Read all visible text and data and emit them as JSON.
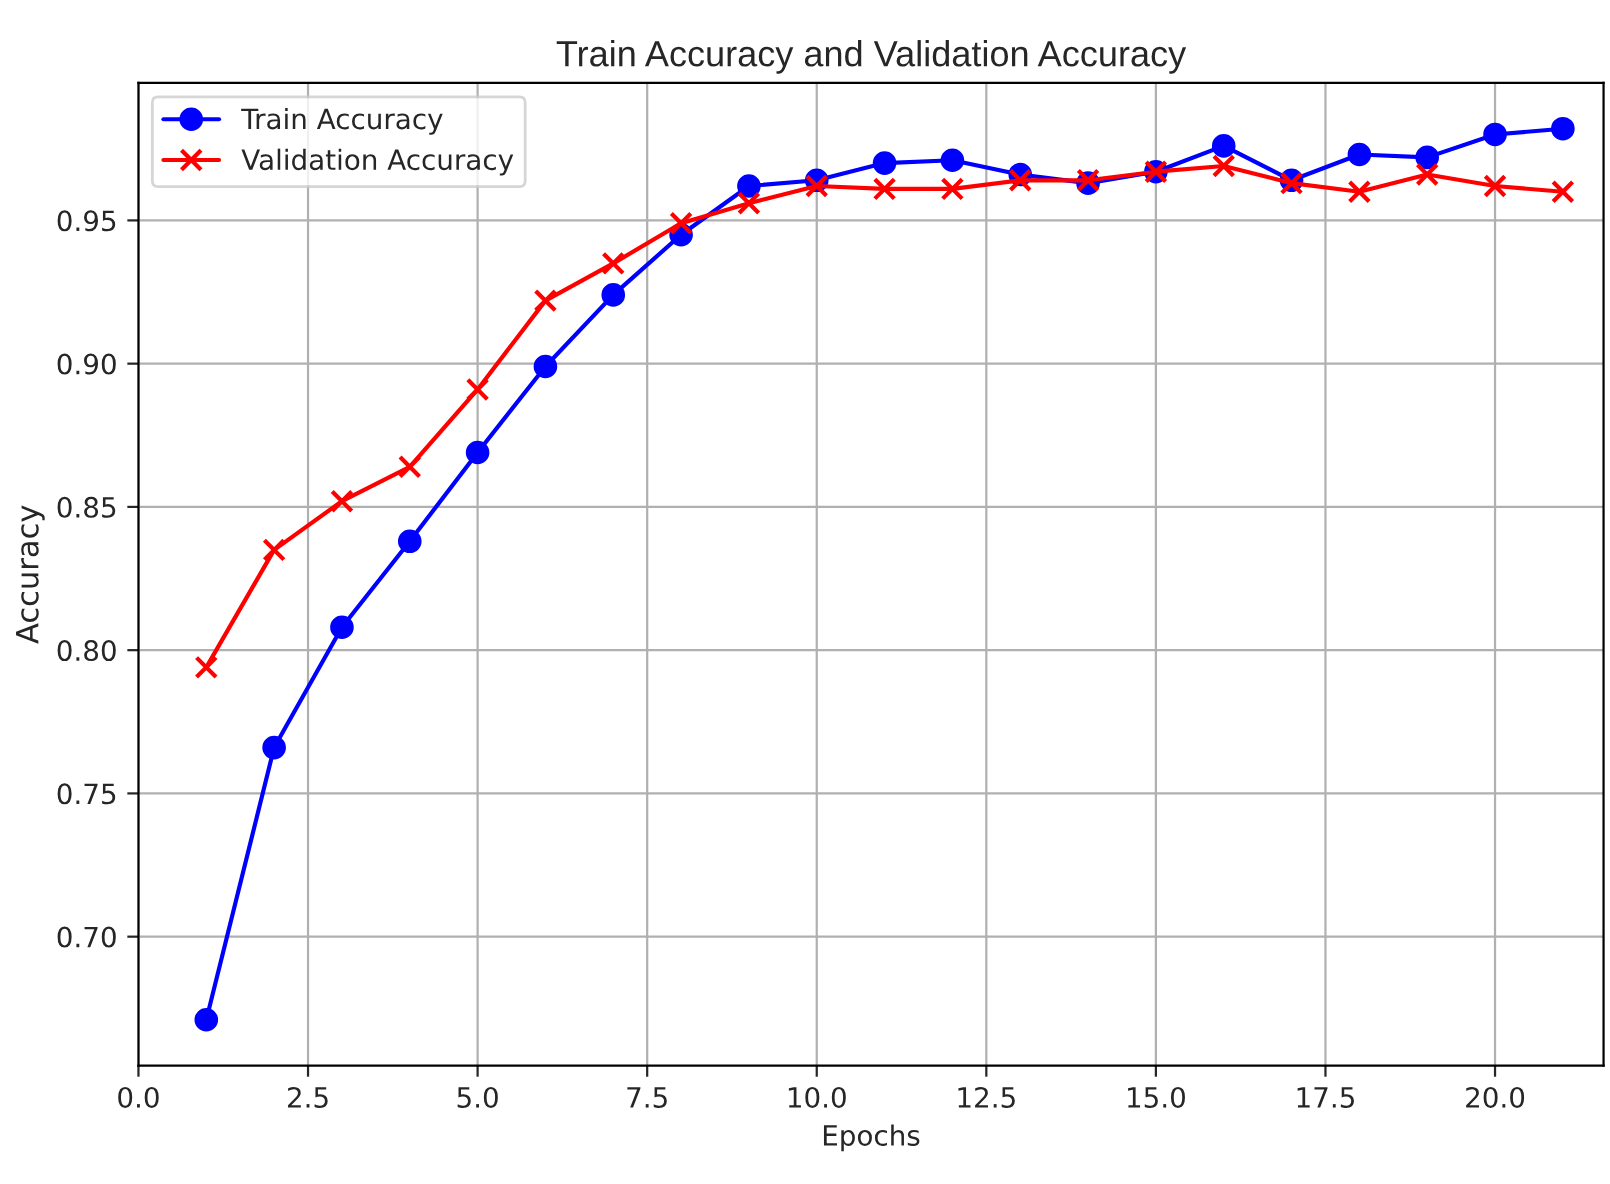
{
  "chart_data": {
    "type": "line",
    "title": "Train Accuracy and Validation Accuracy",
    "xlabel": "Epochs",
    "ylabel": "Accuracy",
    "x": [
      1,
      2,
      3,
      4,
      5,
      6,
      7,
      8,
      9,
      10,
      11,
      12,
      13,
      14,
      15,
      16,
      17,
      18,
      19,
      20,
      21
    ],
    "series": [
      {
        "name": "Train Accuracy",
        "color": "#0000ff",
        "marker": "circle",
        "values": [
          0.671,
          0.766,
          0.808,
          0.838,
          0.869,
          0.899,
          0.924,
          0.945,
          0.962,
          0.964,
          0.97,
          0.971,
          0.966,
          0.963,
          0.967,
          0.976,
          0.964,
          0.973,
          0.972,
          0.98,
          0.982
        ]
      },
      {
        "name": "Validation Accuracy",
        "color": "#ff0000",
        "marker": "cross",
        "values": [
          0.794,
          0.835,
          0.852,
          0.864,
          0.891,
          0.922,
          0.935,
          0.949,
          0.956,
          0.962,
          0.961,
          0.961,
          0.964,
          0.964,
          0.967,
          0.969,
          0.963,
          0.96,
          0.966,
          0.962,
          0.96
        ]
      }
    ],
    "xlim": [
      0,
      21.6
    ],
    "xticks": [
      {
        "value": 0,
        "label": "0.0"
      },
      2.5,
      {
        "value": 5,
        "label": "5.0"
      },
      7.5,
      {
        "value": 10,
        "label": "10.0"
      },
      12.5,
      {
        "value": 15,
        "label": "15.0"
      },
      17.5,
      {
        "value": 20,
        "label": "20.0"
      }
    ],
    "ylim": [
      0.655,
      0.998
    ],
    "yticks": [
      {
        "value": 0.7,
        "label": "0.70"
      },
      0.75,
      {
        "value": 0.8,
        "label": "0.80"
      },
      0.85,
      {
        "value": 0.9,
        "label": "0.90"
      },
      0.95
    ],
    "grid": true,
    "legend": "top left",
    "line_style": "solid"
  }
}
